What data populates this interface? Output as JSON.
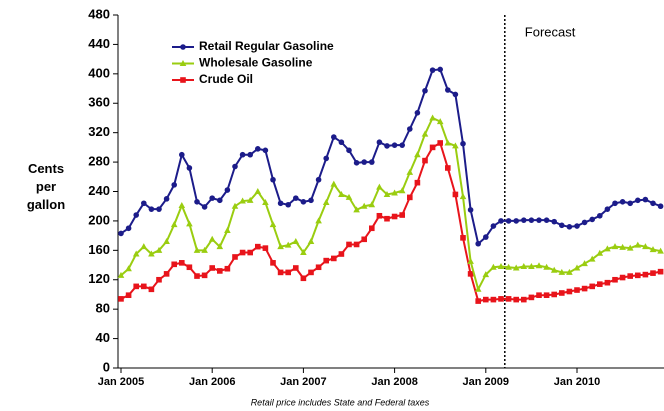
{
  "chart_data": {
    "type": "line",
    "ylabel": "Cents per gallon",
    "footnote": "Retail price includes State and Federal taxes",
    "forecast": {
      "label": "Forecast",
      "x": 50.5
    },
    "ylim": [
      0,
      480
    ],
    "yticks": [
      0,
      40,
      80,
      120,
      160,
      200,
      240,
      280,
      320,
      360,
      400,
      440,
      480
    ],
    "categories": [
      "Jan 2005",
      null,
      null,
      null,
      null,
      null,
      null,
      null,
      null,
      null,
      null,
      null,
      "Jan 2006",
      null,
      null,
      null,
      null,
      null,
      null,
      null,
      null,
      null,
      null,
      null,
      "Jan 2007",
      null,
      null,
      null,
      null,
      null,
      null,
      null,
      null,
      null,
      null,
      null,
      "Jan 2008",
      null,
      null,
      null,
      null,
      null,
      null,
      null,
      null,
      null,
      null,
      null,
      "Jan 2009",
      null,
      null,
      null,
      null,
      null,
      null,
      null,
      null,
      null,
      null,
      null,
      "Jan 2010",
      null,
      null,
      null,
      null,
      null,
      null,
      null,
      null,
      null,
      null,
      null
    ],
    "legend": "upper left",
    "series": [
      {
        "name": "Retail Regular Gasoline",
        "color": "#1c1c8a",
        "marker": "circle",
        "values": [
          183,
          190,
          208,
          224,
          216,
          216,
          230,
          249,
          290,
          272,
          226,
          219,
          231,
          228,
          242,
          274,
          290,
          290,
          298,
          296,
          256,
          224,
          222,
          231,
          226,
          228,
          256,
          285,
          314,
          307,
          296,
          279,
          280,
          280,
          307,
          302,
          303,
          303,
          325,
          347,
          377,
          405,
          406,
          378,
          372,
          305,
          215,
          169,
          178,
          193,
          200,
          200,
          200,
          201,
          201,
          201,
          201,
          199,
          194,
          192,
          193,
          198,
          202,
          207,
          216,
          224,
          226,
          224,
          228,
          229,
          224,
          220
        ]
      },
      {
        "name": "Wholesale Gasoline",
        "color": "#9acd10",
        "marker": "triangle",
        "values": [
          126,
          135,
          155,
          165,
          155,
          160,
          172,
          195,
          221,
          196,
          160,
          160,
          175,
          165,
          187,
          220,
          227,
          228,
          240,
          225,
          195,
          165,
          167,
          172,
          157,
          172,
          200,
          225,
          250,
          236,
          232,
          215,
          220,
          222,
          246,
          236,
          238,
          241,
          266,
          290,
          318,
          340,
          335,
          306,
          302,
          233,
          145,
          107,
          127,
          137,
          138,
          137,
          136,
          138,
          138,
          139,
          137,
          133,
          130,
          130,
          136,
          142,
          148,
          156,
          162,
          165,
          164,
          163,
          167,
          165,
          161,
          159
        ]
      },
      {
        "name": "Crude Oil",
        "color": "#e8141b",
        "marker": "square",
        "values": [
          94,
          99,
          111,
          111,
          107,
          120,
          128,
          141,
          143,
          137,
          125,
          126,
          136,
          132,
          135,
          151,
          157,
          157,
          165,
          163,
          143,
          130,
          130,
          136,
          122,
          130,
          137,
          146,
          149,
          155,
          168,
          168,
          175,
          190,
          207,
          203,
          206,
          208,
          232,
          252,
          282,
          300,
          306,
          272,
          236,
          177,
          128,
          91,
          93,
          93,
          94,
          94,
          93,
          93,
          96,
          99,
          99,
          100,
          102,
          104,
          106,
          108,
          111,
          114,
          116,
          120,
          123,
          125,
          126,
          127,
          129,
          131
        ]
      }
    ]
  }
}
